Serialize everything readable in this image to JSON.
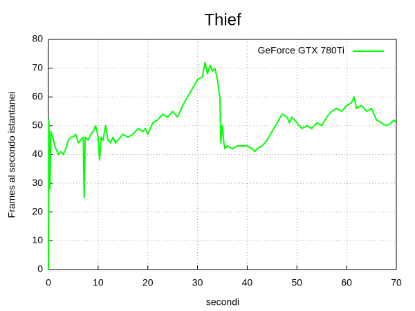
{
  "chart_data": {
    "type": "line",
    "title": "Thief",
    "x_label": "secondi",
    "y_label": "Frames al secondo istantanei",
    "x": [
      0,
      0.05,
      0.2,
      0.3,
      0.5,
      1,
      1.5,
      2,
      2.5,
      3,
      3.5,
      4,
      4.5,
      5,
      5.5,
      6,
      6.5,
      7,
      7.2,
      7.4,
      8,
      8.5,
      9,
      9.5,
      10,
      10.3,
      10.6,
      11,
      11.5,
      12,
      12.5,
      13,
      13.5,
      14,
      14.5,
      15,
      16,
      17,
      18,
      19,
      19.5,
      20,
      20.5,
      21,
      22,
      23,
      24,
      25,
      26,
      27,
      28,
      29,
      30,
      31,
      31.5,
      32,
      32.5,
      33,
      33.5,
      34,
      34.5,
      34.7,
      35,
      35.3,
      35.5,
      36,
      37,
      38,
      39,
      40,
      41,
      41.5,
      42,
      43,
      44,
      45,
      46,
      47,
      48,
      48.5,
      49,
      50,
      51,
      52,
      53,
      54,
      55,
      56,
      57,
      58,
      59,
      60,
      61,
      61.5,
      62,
      63,
      64,
      65,
      66,
      67,
      68,
      69,
      69.5,
      70
    ],
    "series": [
      {
        "name": "GeForce GTX 780Ti",
        "color": "#00ff00",
        "values": [
          0,
          52,
          45,
          28,
          48,
          45,
          42,
          40,
          41,
          40,
          42,
          45,
          46,
          46,
          47,
          44,
          45,
          46,
          25,
          46,
          45,
          47,
          48,
          50,
          46,
          38,
          46,
          45,
          50,
          45,
          44,
          46,
          44,
          45,
          46,
          47,
          46,
          47,
          49,
          48,
          49,
          47,
          49,
          51,
          52,
          54,
          53,
          55,
          53,
          57,
          60,
          63,
          66,
          67,
          72,
          68,
          71,
          69,
          70,
          66,
          60,
          44,
          50,
          44,
          42,
          43,
          42,
          43,
          43,
          43,
          42,
          41,
          42,
          43,
          45,
          48,
          51,
          54,
          53,
          51,
          53,
          51,
          49,
          50,
          49,
          51,
          50,
          53,
          55,
          56,
          55,
          57,
          58,
          60,
          56,
          57,
          55,
          56,
          52,
          51,
          50,
          51,
          52,
          51
        ]
      }
    ],
    "xlim": [
      0,
      70
    ],
    "xticks": [
      0,
      10,
      20,
      30,
      40,
      50,
      60,
      70
    ],
    "ylim": [
      0,
      80
    ],
    "yticks": [
      0,
      10,
      20,
      30,
      40,
      50,
      60,
      70,
      80
    ],
    "grid": true,
    "legend": "top-right"
  }
}
